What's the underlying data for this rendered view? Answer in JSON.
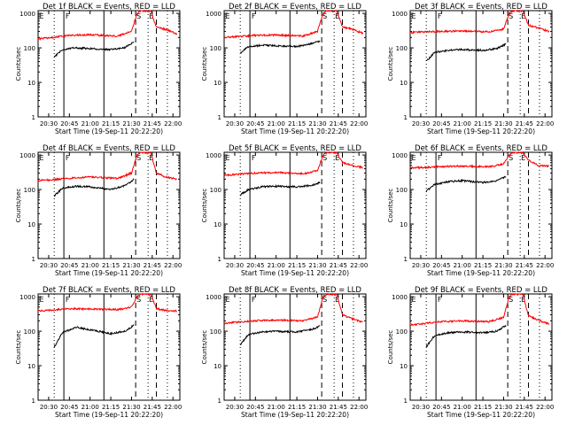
{
  "figure": {
    "xaxis_title": "Start Time (19-Sep-11 20:22:20)",
    "yaxis_title": "Counts/sec",
    "x_tick_labels": [
      "20:30",
      "20:45",
      "21:00",
      "21:15",
      "21:30",
      "21:45",
      "22:00"
    ],
    "y_tick_labels": [
      "1",
      "10",
      "100",
      "1000"
    ],
    "colors": {
      "events": "#000000",
      "lld": "#ff0000",
      "background": "#ffffff"
    }
  },
  "chart_data": [
    {
      "type": "line",
      "title": "Det 1f BLACK = Events, RED = LLD",
      "markers": [
        "E",
        "F",
        "S",
        "E"
      ],
      "x_range": [
        "20:22:20",
        "22:05:00"
      ],
      "y_range": [
        1,
        1200
      ],
      "y_scale": "log",
      "series": [
        {
          "name": "Events",
          "start": "20:34",
          "end": "21:32",
          "points": [
            [
              "20:34",
              55
            ],
            [
              "20:40",
              90
            ],
            [
              "20:50",
              100
            ],
            [
              "21:00",
              95
            ],
            [
              "21:15",
              90
            ],
            [
              "21:25",
              100
            ],
            [
              "21:32",
              150
            ]
          ]
        },
        {
          "name": "LLD",
          "start": "20:22",
          "end": "22:03",
          "points": [
            [
              "20:22",
              180
            ],
            [
              "20:45",
              230
            ],
            [
              "21:00",
              240
            ],
            [
              "21:20",
              220
            ],
            [
              "21:30",
              300
            ],
            [
              "21:34",
              1000
            ],
            [
              "21:37",
              1200
            ],
            [
              "21:44",
              1150
            ],
            [
              "21:48",
              400
            ],
            [
              "21:55",
              340
            ],
            [
              "22:03",
              250
            ]
          ]
        }
      ]
    },
    {
      "type": "line",
      "title": "Det 2f BLACK = Events, RED = LLD",
      "markers": [
        "E",
        "F",
        "S",
        "E"
      ],
      "x_range": [
        "20:22:20",
        "22:05:00"
      ],
      "y_range": [
        1,
        1200
      ],
      "y_scale": "log",
      "series": [
        {
          "name": "Events",
          "start": "20:34",
          "end": "21:32",
          "points": [
            [
              "20:34",
              70
            ],
            [
              "20:40",
              110
            ],
            [
              "20:50",
              120
            ],
            [
              "21:00",
              115
            ],
            [
              "21:15",
              110
            ],
            [
              "21:25",
              130
            ],
            [
              "21:32",
              160
            ]
          ]
        },
        {
          "name": "LLD",
          "start": "20:22",
          "end": "22:03",
          "points": [
            [
              "20:22",
              200
            ],
            [
              "20:45",
              230
            ],
            [
              "21:00",
              235
            ],
            [
              "21:20",
              220
            ],
            [
              "21:30",
              300
            ],
            [
              "21:34",
              1000
            ],
            [
              "21:37",
              1200
            ],
            [
              "21:44",
              1150
            ],
            [
              "21:48",
              400
            ],
            [
              "21:55",
              350
            ],
            [
              "22:03",
              260
            ]
          ]
        }
      ]
    },
    {
      "type": "line",
      "title": "Det 3f BLACK = Events, RED = LLD",
      "markers": [
        "E",
        "F",
        "S",
        "E"
      ],
      "x_range": [
        "20:22:20",
        "22:05:00"
      ],
      "y_range": [
        1,
        1200
      ],
      "y_scale": "log",
      "series": [
        {
          "name": "Events",
          "start": "20:34",
          "end": "21:32",
          "points": [
            [
              "20:34",
              40
            ],
            [
              "20:40",
              75
            ],
            [
              "20:50",
              85
            ],
            [
              "21:00",
              90
            ],
            [
              "21:15",
              85
            ],
            [
              "21:25",
              95
            ],
            [
              "21:32",
              130
            ]
          ]
        },
        {
          "name": "LLD",
          "start": "20:22",
          "end": "22:03",
          "points": [
            [
              "20:22",
              280
            ],
            [
              "20:45",
              300
            ],
            [
              "21:00",
              310
            ],
            [
              "21:20",
              290
            ],
            [
              "21:30",
              350
            ],
            [
              "21:34",
              1000
            ],
            [
              "21:37",
              1200
            ],
            [
              "21:44",
              1150
            ],
            [
              "21:48",
              450
            ],
            [
              "21:55",
              380
            ],
            [
              "22:03",
              300
            ]
          ]
        }
      ]
    },
    {
      "type": "line",
      "title": "Det 4f BLACK = Events, RED = LLD",
      "markers": [
        "E",
        "F",
        "S",
        "E"
      ],
      "x_range": [
        "20:22:20",
        "22:05:00"
      ],
      "y_range": [
        1,
        1200
      ],
      "y_scale": "log",
      "series": [
        {
          "name": "Events",
          "start": "20:34",
          "end": "21:32",
          "points": [
            [
              "20:34",
              65
            ],
            [
              "20:40",
              110
            ],
            [
              "20:50",
              125
            ],
            [
              "21:00",
              120
            ],
            [
              "21:15",
              100
            ],
            [
              "21:25",
              130
            ],
            [
              "21:32",
              200
            ]
          ]
        },
        {
          "name": "LLD",
          "start": "20:22",
          "end": "22:03",
          "points": [
            [
              "20:22",
              180
            ],
            [
              "20:45",
              210
            ],
            [
              "21:00",
              230
            ],
            [
              "21:20",
              210
            ],
            [
              "21:30",
              300
            ],
            [
              "21:34",
              1000
            ],
            [
              "21:37",
              1200
            ],
            [
              "21:44",
              1150
            ],
            [
              "21:48",
              300
            ],
            [
              "21:55",
              230
            ],
            [
              "22:03",
              200
            ]
          ]
        }
      ]
    },
    {
      "type": "line",
      "title": "Det 5f BLACK = Events, RED = LLD",
      "markers": [
        "E",
        "F",
        "S",
        "E"
      ],
      "x_range": [
        "20:22:20",
        "22:05:00"
      ],
      "y_range": [
        1,
        1200
      ],
      "y_scale": "log",
      "series": [
        {
          "name": "Events",
          "start": "20:34",
          "end": "21:32",
          "points": [
            [
              "20:34",
              70
            ],
            [
              "20:40",
              100
            ],
            [
              "20:50",
              120
            ],
            [
              "21:00",
              125
            ],
            [
              "21:15",
              120
            ],
            [
              "21:25",
              130
            ],
            [
              "21:32",
              160
            ]
          ]
        },
        {
          "name": "LLD",
          "start": "20:22",
          "end": "22:03",
          "points": [
            [
              "20:22",
              260
            ],
            [
              "20:45",
              300
            ],
            [
              "21:00",
              310
            ],
            [
              "21:20",
              290
            ],
            [
              "21:30",
              350
            ],
            [
              "21:34",
              1000
            ],
            [
              "21:37",
              1200
            ],
            [
              "21:44",
              1150
            ],
            [
              "21:48",
              600
            ],
            [
              "21:55",
              500
            ],
            [
              "22:03",
              430
            ]
          ]
        }
      ]
    },
    {
      "type": "line",
      "title": "Det 6f BLACK = Events, RED = LLD",
      "markers": [
        "E",
        "F",
        "S",
        "E"
      ],
      "x_range": [
        "20:22:20",
        "22:05:00"
      ],
      "y_range": [
        1,
        1200
      ],
      "y_scale": "log",
      "series": [
        {
          "name": "Events",
          "start": "20:34",
          "end": "21:32",
          "points": [
            [
              "20:34",
              90
            ],
            [
              "20:40",
              140
            ],
            [
              "20:50",
              170
            ],
            [
              "21:00",
              180
            ],
            [
              "21:15",
              160
            ],
            [
              "21:25",
              180
            ],
            [
              "21:32",
              240
            ]
          ]
        },
        {
          "name": "LLD",
          "start": "20:22",
          "end": "22:03",
          "points": [
            [
              "20:22",
              420
            ],
            [
              "20:45",
              460
            ],
            [
              "21:00",
              480
            ],
            [
              "21:20",
              460
            ],
            [
              "21:30",
              550
            ],
            [
              "21:34",
              1000
            ],
            [
              "21:37",
              1200
            ],
            [
              "21:44",
              1150
            ],
            [
              "21:48",
              700
            ],
            [
              "21:55",
              500
            ],
            [
              "22:03",
              480
            ]
          ]
        }
      ]
    },
    {
      "type": "line",
      "title": "Det 7f BLACK = Events, RED = LLD",
      "markers": [
        "E",
        "F",
        "S",
        "E"
      ],
      "x_range": [
        "20:22:20",
        "22:05:00"
      ],
      "y_range": [
        1,
        1200
      ],
      "y_scale": "log",
      "series": [
        {
          "name": "Events",
          "start": "20:34",
          "end": "21:32",
          "points": [
            [
              "20:34",
              35
            ],
            [
              "20:40",
              90
            ],
            [
              "20:50",
              130
            ],
            [
              "21:00",
              110
            ],
            [
              "21:15",
              85
            ],
            [
              "21:25",
              100
            ],
            [
              "21:32",
              150
            ]
          ]
        },
        {
          "name": "LLD",
          "start": "20:22",
          "end": "22:03",
          "points": [
            [
              "20:22",
              380
            ],
            [
              "20:45",
              450
            ],
            [
              "21:00",
              440
            ],
            [
              "21:20",
              420
            ],
            [
              "21:30",
              500
            ],
            [
              "21:34",
              1000
            ],
            [
              "21:37",
              1200
            ],
            [
              "21:44",
              1150
            ],
            [
              "21:48",
              450
            ],
            [
              "21:55",
              400
            ],
            [
              "22:03",
              380
            ]
          ]
        }
      ]
    },
    {
      "type": "line",
      "title": "Det 8f BLACK = Events, RED = LLD",
      "markers": [
        "E",
        "F",
        "S",
        "E"
      ],
      "x_range": [
        "20:22:20",
        "22:05:00"
      ],
      "y_range": [
        1,
        1200
      ],
      "y_scale": "log",
      "series": [
        {
          "name": "Events",
          "start": "20:34",
          "end": "21:32",
          "points": [
            [
              "20:34",
              40
            ],
            [
              "20:40",
              80
            ],
            [
              "20:50",
              95
            ],
            [
              "21:00",
              100
            ],
            [
              "21:15",
              95
            ],
            [
              "21:25",
              110
            ],
            [
              "21:32",
              140
            ]
          ]
        },
        {
          "name": "LLD",
          "start": "20:22",
          "end": "22:03",
          "points": [
            [
              "20:22",
              170
            ],
            [
              "20:45",
              200
            ],
            [
              "21:00",
              210
            ],
            [
              "21:20",
              200
            ],
            [
              "21:30",
              260
            ],
            [
              "21:34",
              1000
            ],
            [
              "21:37",
              1200
            ],
            [
              "21:44",
              1150
            ],
            [
              "21:48",
              300
            ],
            [
              "21:55",
              230
            ],
            [
              "22:03",
              180
            ]
          ]
        }
      ]
    },
    {
      "type": "line",
      "title": "Det 9f BLACK = Events, RED = LLD",
      "markers": [
        "E",
        "F",
        "S",
        "E"
      ],
      "x_range": [
        "20:22:20",
        "22:05:00"
      ],
      "y_range": [
        1,
        1200
      ],
      "y_scale": "log",
      "series": [
        {
          "name": "Events",
          "start": "20:34",
          "end": "21:32",
          "points": [
            [
              "20:34",
              35
            ],
            [
              "20:40",
              75
            ],
            [
              "20:50",
              90
            ],
            [
              "21:00",
              95
            ],
            [
              "21:15",
              90
            ],
            [
              "21:25",
              100
            ],
            [
              "21:32",
              150
            ]
          ]
        },
        {
          "name": "LLD",
          "start": "20:22",
          "end": "22:03",
          "points": [
            [
              "20:22",
              150
            ],
            [
              "20:45",
              190
            ],
            [
              "21:00",
              200
            ],
            [
              "21:20",
              190
            ],
            [
              "21:30",
              250
            ],
            [
              "21:34",
              1000
            ],
            [
              "21:37",
              1200
            ],
            [
              "21:44",
              1150
            ],
            [
              "21:48",
              280
            ],
            [
              "21:55",
              210
            ],
            [
              "22:03",
              160
            ]
          ]
        }
      ]
    }
  ]
}
